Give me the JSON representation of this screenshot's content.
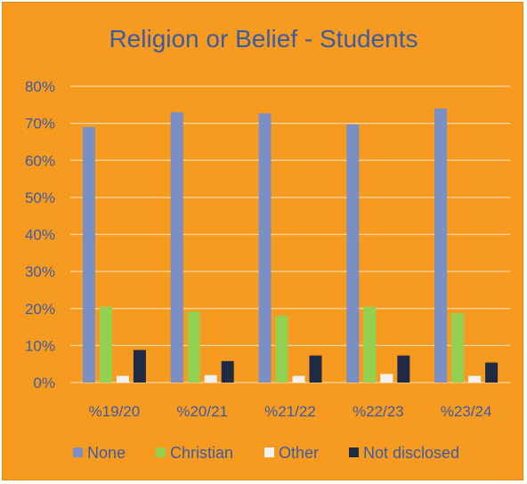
{
  "chart_data": {
    "type": "bar",
    "title": "Religion or Belief - Students",
    "categories": [
      "%19/20",
      "%20/21",
      "%21/22",
      "%22/23",
      "%23/24"
    ],
    "series": [
      {
        "name": "None",
        "color": "#7a8fc4",
        "values": [
          69,
          73,
          72.7,
          69.7,
          74
        ]
      },
      {
        "name": "Christian",
        "color": "#92d050",
        "values": [
          20.5,
          19.2,
          18,
          20.5,
          18.8
        ]
      },
      {
        "name": "Other",
        "color": "#f2f2f2",
        "values": [
          1.8,
          2,
          1.8,
          2.3,
          1.8
        ]
      },
      {
        "name": "Not disclosed",
        "color": "#1f2a44",
        "values": [
          8.8,
          5.8,
          7.3,
          7.3,
          5.4
        ]
      }
    ],
    "yticks": [
      "0%",
      "10%",
      "20%",
      "30%",
      "40%",
      "50%",
      "60%",
      "70%",
      "80%"
    ],
    "ylim": [
      0,
      80
    ],
    "grid": true,
    "legend_position": "bottom"
  }
}
